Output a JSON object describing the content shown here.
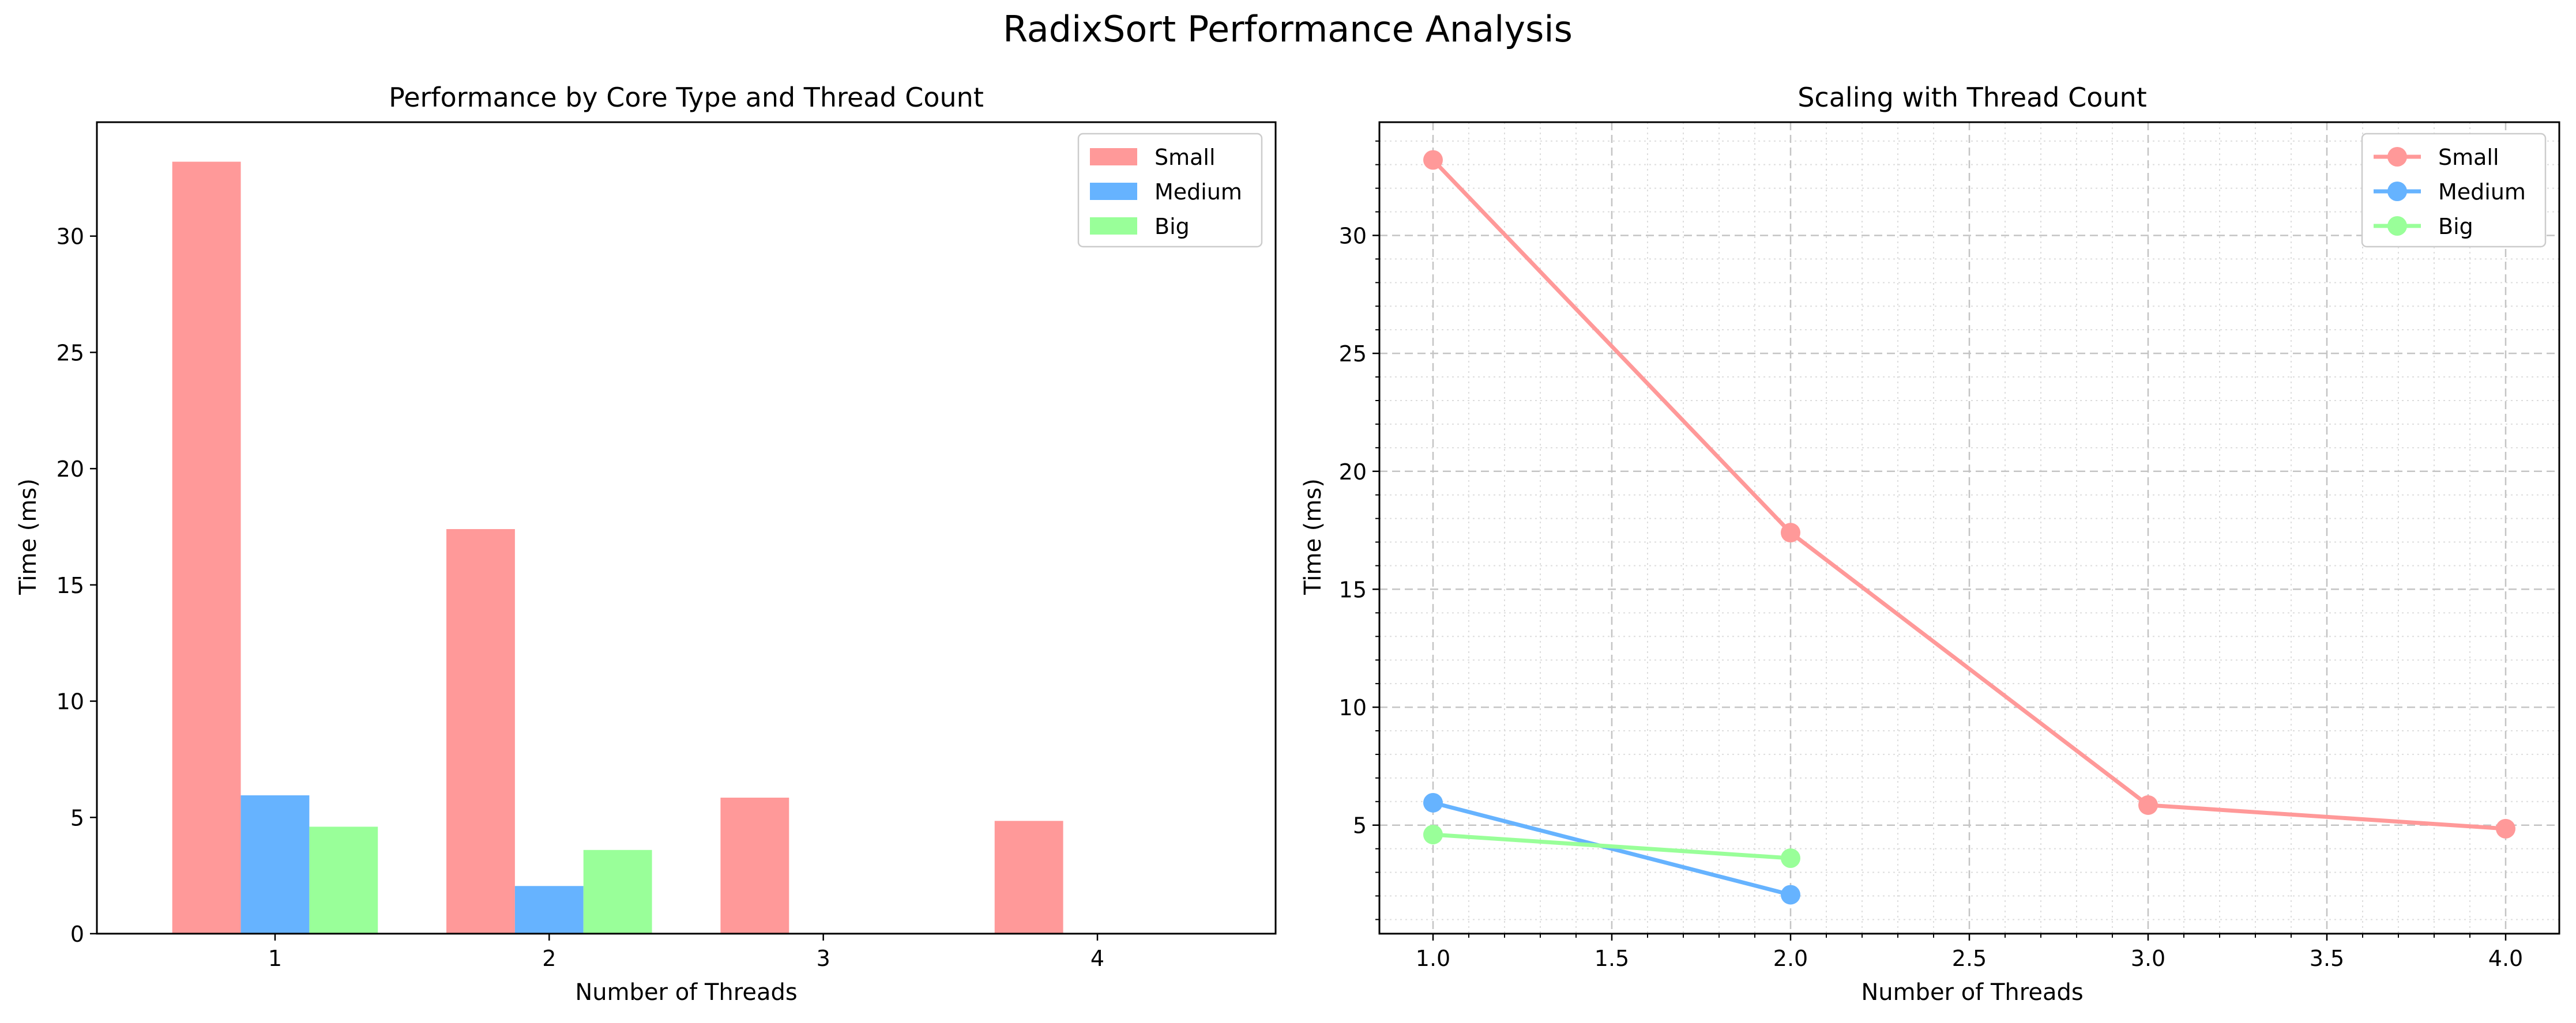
{
  "figure": {
    "suptitle": "RadixSort Performance Analysis"
  },
  "colors": {
    "Small": "#ff9999",
    "Medium": "#66b3ff",
    "Big": "#99ff99"
  },
  "chart_data": [
    {
      "type": "bar",
      "title": "Performance by Core Type and Thread Count",
      "xlabel": "Number of Threads",
      "ylabel": "Time (ms)",
      "categories": [
        "1",
        "2",
        "3",
        "4"
      ],
      "series": [
        {
          "name": "Small",
          "values": [
            33.2,
            17.4,
            5.85,
            4.85
          ]
        },
        {
          "name": "Medium",
          "values": [
            5.95,
            2.05,
            null,
            null
          ]
        },
        {
          "name": "Big",
          "values": [
            4.6,
            3.6,
            null,
            null
          ]
        }
      ],
      "xlim": [
        0.35,
        4.65
      ],
      "ylim": [
        0,
        34.9
      ],
      "yticks": [
        0,
        5,
        10,
        15,
        20,
        25,
        30
      ],
      "grid": false,
      "legend": "top-right"
    },
    {
      "type": "line",
      "title": "Scaling with Thread Count",
      "xlabel": "Number of Threads",
      "ylabel": "Time (ms)",
      "series": [
        {
          "name": "Small",
          "x": [
            1.0,
            2.0,
            3.0,
            4.0
          ],
          "y": [
            33.2,
            17.4,
            5.85,
            4.85
          ]
        },
        {
          "name": "Medium",
          "x": [
            1.0,
            2.0
          ],
          "y": [
            5.95,
            2.05
          ]
        },
        {
          "name": "Big",
          "x": [
            1.0,
            2.0
          ],
          "y": [
            4.6,
            3.6
          ]
        }
      ],
      "xlim": [
        0.85,
        4.15
      ],
      "ylim": [
        0.4,
        34.8
      ],
      "xticks": [
        "1.0",
        "1.5",
        "2.0",
        "2.5",
        "3.0",
        "3.5",
        "4.0"
      ],
      "yticks": [
        5,
        10,
        15,
        20,
        25,
        30
      ],
      "grid": true,
      "minor_grid": true,
      "legend": "top-right"
    }
  ]
}
